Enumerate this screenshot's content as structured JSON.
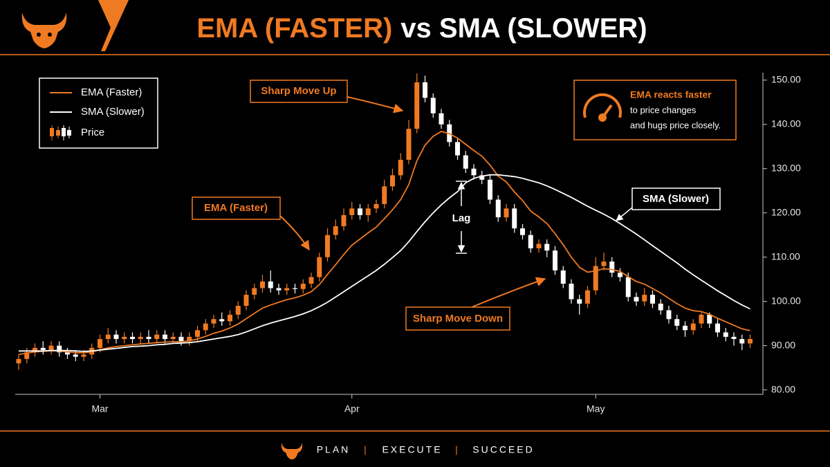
{
  "header": {
    "title_highlight": "EMA (FASTER)",
    "title_rest": "vs SMA (SLOWER)"
  },
  "chart_data": {
    "type": "candlestick",
    "categories": [
      null,
      null,
      null,
      null,
      null,
      null,
      null,
      null,
      null,
      null,
      "Mar",
      null,
      null,
      null,
      null,
      null,
      null,
      null,
      null,
      null,
      null,
      null,
      null,
      null,
      null,
      null,
      null,
      null,
      null,
      null,
      null,
      null,
      null,
      null,
      null,
      null,
      null,
      null,
      null,
      null,
      null,
      "Apr",
      null,
      null,
      null,
      null,
      null,
      null,
      null,
      null,
      null,
      null,
      null,
      null,
      null,
      null,
      null,
      null,
      null,
      null,
      null,
      null,
      null,
      null,
      null,
      null,
      null,
      null,
      null,
      null,
      null,
      "May",
      null,
      null,
      null,
      null,
      null,
      null,
      null,
      null,
      null,
      null,
      null,
      null,
      null,
      null,
      null,
      null,
      null,
      null,
      null
    ],
    "open": [
      86,
      87,
      88.5,
      89.5,
      89,
      90,
      88.5,
      88,
      87.5,
      88,
      89.5,
      91.5,
      92.5,
      91.5,
      92,
      91.5,
      92,
      91.5,
      92.5,
      91.5,
      92,
      91,
      92,
      93.5,
      95,
      96,
      95.5,
      97,
      99,
      101.5,
      103,
      104.5,
      103,
      102.5,
      103,
      102.8,
      104,
      105.5,
      110,
      115,
      117,
      119.5,
      121,
      119.5,
      121,
      122,
      126,
      128.5,
      132,
      139,
      149.5,
      146,
      142.5,
      140,
      136,
      133,
      130,
      128.5,
      127.5,
      123,
      119,
      121,
      116.5,
      115,
      112,
      113,
      111.5,
      107,
      104,
      100.5,
      99.5,
      102.5,
      108,
      109,
      106.5,
      105.5,
      101,
      100,
      101.5,
      99.5,
      98,
      96,
      94.5,
      93.5,
      95,
      97,
      95,
      93,
      92,
      91.5,
      90.5
    ],
    "high": [
      88,
      89.5,
      90.5,
      91,
      91,
      91,
      89.5,
      89,
      89,
      90.5,
      92.5,
      94,
      93.5,
      93,
      93,
      93,
      93.5,
      93.5,
      93.5,
      93,
      93,
      93,
      94.5,
      96,
      97,
      97.5,
      98,
      100,
      102.5,
      104,
      106,
      107,
      104,
      104,
      104,
      105,
      106.5,
      111,
      116.5,
      118.5,
      121,
      122.5,
      122,
      122,
      123,
      127.5,
      130,
      133.5,
      141,
      151.5,
      151,
      147,
      143.5,
      141,
      137,
      134,
      131,
      129.5,
      128.5,
      124,
      122,
      122,
      117.5,
      116,
      114,
      114,
      112.5,
      108,
      105,
      101.5,
      103.5,
      110,
      111,
      110,
      107.5,
      106.5,
      102,
      103,
      102.5,
      100.5,
      99,
      97,
      95.5,
      96,
      97.5,
      97.5,
      96,
      94,
      93,
      92.5,
      92.5
    ],
    "low": [
      84.5,
      86,
      87.5,
      88,
      88,
      87.5,
      87,
      86.5,
      86.5,
      87,
      88.5,
      90.5,
      90.5,
      90.5,
      90.5,
      90.5,
      90.5,
      90.5,
      90.5,
      90.5,
      90,
      90,
      91,
      92.5,
      94,
      94.5,
      94.5,
      96,
      98,
      100.5,
      102,
      102,
      101.5,
      101.5,
      101.8,
      101.8,
      103,
      104.5,
      109,
      114,
      116,
      118.5,
      118.5,
      118,
      120,
      121,
      125,
      127.5,
      131,
      138,
      145,
      141.5,
      139,
      135,
      132,
      129,
      127.5,
      126.5,
      122,
      118,
      118,
      115.5,
      114,
      111,
      111,
      110,
      106,
      103,
      99.5,
      97,
      98.5,
      101.5,
      107,
      105.5,
      104.5,
      100,
      99,
      99,
      98.5,
      97,
      95,
      93.5,
      92,
      92.5,
      94,
      94,
      92,
      91,
      90,
      89,
      89.5
    ],
    "close": [
      87,
      88.5,
      89.5,
      89,
      90,
      88.5,
      88,
      87.5,
      88,
      89.5,
      91.5,
      92.5,
      91.5,
      92,
      91.5,
      92,
      91.5,
      92.5,
      91.5,
      92,
      91,
      92,
      93.5,
      95,
      96,
      95.5,
      97,
      99,
      101.5,
      103,
      104.5,
      103,
      102.5,
      103,
      102.8,
      104,
      105.5,
      110,
      115,
      117,
      119.5,
      121,
      119.5,
      121,
      122,
      126,
      128.5,
      132,
      139,
      149.5,
      146,
      142.5,
      140,
      136,
      133,
      130,
      128.5,
      127.5,
      123,
      119,
      121,
      116.5,
      115,
      112,
      113,
      111.5,
      107,
      104,
      100.5,
      99.5,
      102.5,
      108,
      109,
      106.5,
      105.5,
      101,
      100,
      101.5,
      99.5,
      98,
      96,
      94.5,
      93.5,
      95,
      97,
      95,
      93,
      92,
      91.5,
      90.5,
      91.5
    ],
    "up_color": "#f07a22",
    "down_color": "#ffffff",
    "price_name": "Price",
    "series": [
      {
        "name": "EMA (Faster)",
        "color": "#f07a22",
        "values": [
          88.0,
          88.3,
          88.6,
          88.7,
          88.9,
          88.8,
          88.6,
          88.4,
          88.4,
          88.6,
          89.1,
          89.5,
          89.8,
          90.0,
          90.2,
          90.4,
          90.5,
          90.7,
          90.8,
          90.9,
          90.9,
          91.1,
          91.5,
          92.1,
          92.8,
          93.3,
          94.0,
          94.9,
          96.1,
          97.3,
          98.5,
          99.2,
          99.8,
          100.4,
          100.8,
          101.4,
          102.2,
          103.8,
          106.1,
          108.3,
          110.6,
          112.7,
          114.1,
          115.5,
          116.8,
          118.7,
          120.7,
          123.0,
          126.4,
          131.8,
          135.3,
          137.3,
          138.4,
          137.9,
          136.9,
          135.5,
          134.1,
          132.8,
          130.8,
          128.3,
          127.0,
          124.7,
          122.8,
          120.4,
          119.1,
          117.6,
          115.3,
          112.8,
          110.0,
          107.7,
          106.6,
          106.9,
          107.4,
          107.2,
          106.8,
          105.6,
          104.5,
          103.9,
          102.9,
          101.9,
          100.7,
          99.5,
          98.5,
          97.9,
          97.7,
          97.1,
          96.2,
          95.4,
          94.6,
          93.8,
          93.4
        ]
      },
      {
        "name": "SMA (Slower)",
        "color": "#ffffff",
        "values": [
          88.8,
          88.8,
          88.8,
          88.8,
          88.9,
          88.9,
          88.9,
          88.8,
          88.7,
          88.8,
          89.0,
          89.2,
          89.4,
          89.6,
          89.8,
          89.9,
          90.0,
          90.2,
          90.3,
          90.5,
          90.6,
          90.7,
          90.9,
          91.2,
          91.5,
          91.8,
          92.1,
          92.5,
          93.1,
          93.8,
          94.5,
          95.1,
          95.6,
          96.1,
          96.6,
          97.2,
          97.9,
          98.8,
          99.8,
          101.0,
          102.2,
          103.4,
          104.6,
          105.8,
          107.0,
          108.4,
          109.9,
          111.5,
          113.5,
          115.8,
          118.0,
          120.0,
          121.8,
          123.4,
          124.8,
          126.8,
          127.8,
          128.3,
          128.6,
          128.6,
          128.4,
          128.2,
          127.8,
          127.3,
          126.8,
          126.1,
          125.3,
          124.4,
          123.5,
          122.5,
          121.5,
          120.6,
          119.7,
          118.7,
          117.6,
          116.4,
          115.2,
          113.9,
          112.6,
          111.3,
          110.0,
          108.7,
          107.3,
          106.0,
          104.8,
          103.6,
          102.4,
          101.3,
          100.2,
          99.2,
          98.3
        ]
      }
    ],
    "ylim": [
      79,
      152
    ],
    "yticks": [
      {
        "value": 80,
        "label": "80.00"
      },
      {
        "value": 90,
        "label": "90.00"
      },
      {
        "value": 100,
        "label": "100.00"
      },
      {
        "value": 110,
        "label": "110.00"
      },
      {
        "value": 120,
        "label": "120.00"
      },
      {
        "value": 130,
        "label": "130.00"
      },
      {
        "value": 140,
        "label": "140.00"
      },
      {
        "value": 150,
        "label": "150.00"
      }
    ],
    "legend": "upper left",
    "annotations": {
      "move_up": "Sharp Move Up",
      "ema": "EMA (Faster)",
      "lag": "Lag",
      "sma": "SMA (Slower)",
      "move_down": "Sharp Move Down"
    },
    "info": {
      "title": "EMA reacts faster",
      "lines": [
        "to price changes",
        "and hugs price closely."
      ]
    }
  },
  "footer": {
    "items": [
      "PLAN",
      "EXECUTE",
      "SUCCEED"
    ],
    "separator": "|"
  }
}
